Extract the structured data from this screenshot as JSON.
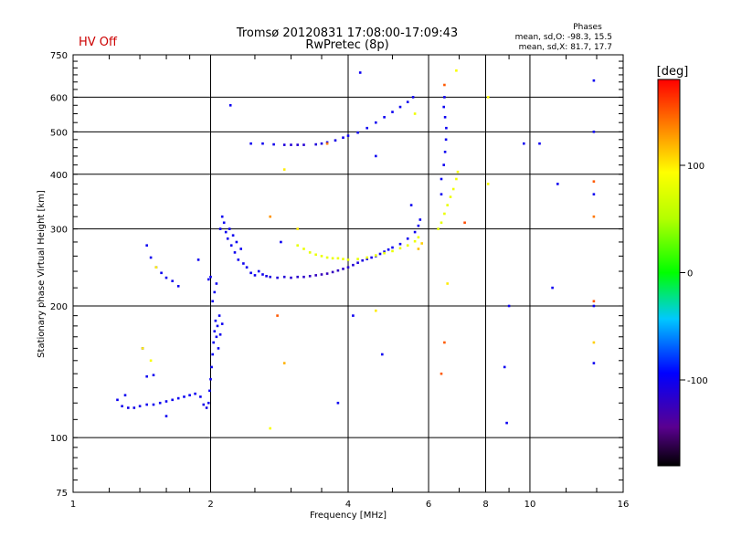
{
  "header": {
    "status": "HV Off",
    "status_color": "#cc0000",
    "title_line1": "Tromsø 20120831 17:08:00-17:09:43",
    "title_line2": "RwPretec (8p)",
    "phases_title": "Phases",
    "phases_o": "mean, sd,O: -98.3, 15.5",
    "phases_x": "mean, sd,X:  81.7, 17.7"
  },
  "colorbar": {
    "label": "[deg]",
    "range": [
      -180,
      180
    ],
    "ticks": [
      {
        "value": 100,
        "label": "100"
      },
      {
        "value": 0,
        "label": "0"
      },
      {
        "value": -100,
        "label": "-100"
      }
    ]
  },
  "chart_data": {
    "type": "scatter",
    "xlabel": "Frequency [MHz]",
    "ylabel": "Stationary phase Virtual Height [km]",
    "xscale": "log",
    "yscale": "log",
    "xlim": [
      1,
      16
    ],
    "ylim": [
      75,
      750
    ],
    "grid": true,
    "xticks_major": [
      {
        "value": 1,
        "label": "1"
      },
      {
        "value": 2,
        "label": "2"
      },
      {
        "value": 4,
        "label": "4"
      },
      {
        "value": 6,
        "label": "6"
      },
      {
        "value": 8,
        "label": "8"
      },
      {
        "value": 10,
        "label": "10"
      },
      {
        "value": 16,
        "label": "16"
      }
    ],
    "yticks_major": [
      {
        "value": 75,
        "label": "75"
      },
      {
        "value": 100,
        "label": "100"
      },
      {
        "value": 200,
        "label": "200"
      },
      {
        "value": 300,
        "label": "300"
      },
      {
        "value": 400,
        "label": "400"
      },
      {
        "value": 500,
        "label": "500"
      },
      {
        "value": 600,
        "label": "600"
      },
      {
        "value": 750,
        "label": "750"
      }
    ],
    "series": [
      {
        "mode": "O",
        "points": [
          [
            1.25,
            122,
            -100
          ],
          [
            1.28,
            118,
            -102
          ],
          [
            1.32,
            117,
            -104
          ],
          [
            1.36,
            117,
            -103
          ],
          [
            1.4,
            118,
            -102
          ],
          [
            1.45,
            119,
            -101
          ],
          [
            1.5,
            119,
            -100
          ],
          [
            1.55,
            120,
            -99
          ],
          [
            1.6,
            121,
            -100
          ],
          [
            1.65,
            122,
            -101
          ],
          [
            1.7,
            123,
            -100
          ],
          [
            1.75,
            124,
            -99
          ],
          [
            1.8,
            125,
            -98
          ],
          [
            1.85,
            126,
            -99
          ],
          [
            1.9,
            124,
            -100
          ],
          [
            1.93,
            119,
            -103
          ],
          [
            1.96,
            117,
            -104
          ],
          [
            1.98,
            120,
            -102
          ],
          [
            1.99,
            128,
            -100
          ],
          [
            2.0,
            136,
            -99
          ],
          [
            2.01,
            145,
            -98
          ],
          [
            2.02,
            155,
            -97
          ],
          [
            2.03,
            165,
            -98
          ],
          [
            2.04,
            175,
            -99
          ],
          [
            2.05,
            185,
            -100
          ],
          [
            2.06,
            170,
            -101
          ],
          [
            2.07,
            180,
            -100
          ],
          [
            2.08,
            160,
            -99
          ],
          [
            2.09,
            190,
            -100
          ],
          [
            2.1,
            172,
            -101
          ],
          [
            2.12,
            182,
            -100
          ],
          [
            2.02,
            205,
            -100
          ],
          [
            2.04,
            215,
            -99
          ],
          [
            2.06,
            225,
            -100
          ],
          [
            1.98,
            230,
            -101
          ],
          [
            2.1,
            300,
            -100
          ],
          [
            2.12,
            320,
            -100
          ],
          [
            2.14,
            310,
            -99
          ],
          [
            2.16,
            295,
            -100
          ],
          [
            2.18,
            285,
            -101
          ],
          [
            2.2,
            300,
            -100
          ],
          [
            2.22,
            275,
            -99
          ],
          [
            2.24,
            290,
            -100
          ],
          [
            2.26,
            265,
            -101
          ],
          [
            2.28,
            280,
            -100
          ],
          [
            2.3,
            255,
            -99
          ],
          [
            2.33,
            270,
            -100
          ],
          [
            2.36,
            250,
            -101
          ],
          [
            2.4,
            245,
            -100
          ],
          [
            2.45,
            238,
            -100
          ],
          [
            2.5,
            235,
            -101
          ],
          [
            2.55,
            240,
            -100
          ],
          [
            2.6,
            236,
            -102
          ],
          [
            2.65,
            234,
            -105
          ],
          [
            2.7,
            233,
            -108
          ],
          [
            2.8,
            232,
            -110
          ],
          [
            2.9,
            233,
            -112
          ],
          [
            3.0,
            232,
            -115
          ],
          [
            3.1,
            233,
            -116
          ],
          [
            3.2,
            233,
            -118
          ],
          [
            3.3,
            234,
            -120
          ],
          [
            3.4,
            235,
            -122
          ],
          [
            3.5,
            236,
            -123
          ],
          [
            3.6,
            237,
            -124
          ],
          [
            3.7,
            239,
            -122
          ],
          [
            3.8,
            241,
            -120
          ],
          [
            3.9,
            243,
            -118
          ],
          [
            4.0,
            245,
            -115
          ],
          [
            4.1,
            248,
            -112
          ],
          [
            4.2,
            251,
            -110
          ],
          [
            4.3,
            254,
            -107
          ],
          [
            4.4,
            256,
            -105
          ],
          [
            4.5,
            258,
            -104
          ],
          [
            4.6,
            260,
            -103
          ],
          [
            4.7,
            263,
            -102
          ],
          [
            4.8,
            266,
            -101
          ],
          [
            4.9,
            269,
            -100
          ],
          [
            5.0,
            272,
            -100
          ],
          [
            5.2,
            277,
            -100
          ],
          [
            5.4,
            285,
            -100
          ],
          [
            5.6,
            295,
            -100
          ],
          [
            5.7,
            305,
            -100
          ],
          [
            5.75,
            315,
            -100
          ],
          [
            1.45,
            275,
            -100
          ],
          [
            1.48,
            258,
            -101
          ],
          [
            1.52,
            245,
            -100
          ],
          [
            1.56,
            238,
            -100
          ],
          [
            1.6,
            232,
            -101
          ],
          [
            1.65,
            228,
            -100
          ],
          [
            1.7,
            222,
            -100
          ],
          [
            2.45,
            470,
            -100
          ],
          [
            2.6,
            470,
            -101
          ],
          [
            2.75,
            468,
            -102
          ],
          [
            2.9,
            467,
            -110
          ],
          [
            3.0,
            467,
            -112
          ],
          [
            3.1,
            467,
            -114
          ],
          [
            3.2,
            467,
            -113
          ],
          [
            3.4,
            468,
            -110
          ],
          [
            3.5,
            470,
            -108
          ],
          [
            3.6,
            473,
            -106
          ],
          [
            3.75,
            478,
            -104
          ],
          [
            3.9,
            485,
            -102
          ],
          [
            4.0,
            490,
            -101
          ],
          [
            4.2,
            498,
            -100
          ],
          [
            4.4,
            510,
            -100
          ],
          [
            4.6,
            525,
            -100
          ],
          [
            4.8,
            540,
            -100
          ],
          [
            5.0,
            555,
            -100
          ],
          [
            5.2,
            570,
            -100
          ],
          [
            5.4,
            585,
            -100
          ],
          [
            5.55,
            600,
            -100
          ],
          [
            6.5,
            600,
            -100
          ],
          [
            6.48,
            570,
            -100
          ],
          [
            6.52,
            540,
            -100
          ],
          [
            6.56,
            510,
            -100
          ],
          [
            6.55,
            480,
            -100
          ],
          [
            6.52,
            450,
            -100
          ],
          [
            6.48,
            420,
            -100
          ],
          [
            6.4,
            390,
            -100
          ],
          [
            1.3,
            125,
            -100
          ],
          [
            1.45,
            138,
            -100
          ],
          [
            1.5,
            139,
            -100
          ],
          [
            1.42,
            160,
            -100
          ],
          [
            1.6,
            112,
            -100
          ],
          [
            2.21,
            575,
            -100
          ],
          [
            2.0,
            233,
            -100
          ],
          [
            1.88,
            255,
            -100
          ],
          [
            4.25,
            683,
            -100
          ],
          [
            5.5,
            340,
            -100
          ],
          [
            6.4,
            360,
            -100
          ],
          [
            13.8,
            655,
            -100
          ],
          [
            13.8,
            500,
            -100
          ],
          [
            13.8,
            360,
            -100
          ],
          [
            13.8,
            200,
            -100
          ],
          [
            13.8,
            148,
            -100
          ],
          [
            11.5,
            380,
            -100
          ],
          [
            11.2,
            220,
            -100
          ],
          [
            9.0,
            200,
            -100
          ],
          [
            8.8,
            145,
            -100
          ],
          [
            8.9,
            108,
            -100
          ],
          [
            10.5,
            470,
            -100
          ],
          [
            9.7,
            470,
            -100
          ],
          [
            3.8,
            120,
            -100
          ],
          [
            4.75,
            155,
            -100
          ],
          [
            2.85,
            280,
            -100
          ],
          [
            4.1,
            190,
            -100
          ],
          [
            4.6,
            440,
            -100
          ]
        ]
      },
      {
        "mode": "X",
        "points": [
          [
            3.1,
            275,
            80
          ],
          [
            3.2,
            270,
            82
          ],
          [
            3.3,
            265,
            80
          ],
          [
            3.4,
            262,
            82
          ],
          [
            3.5,
            260,
            83
          ],
          [
            3.6,
            258,
            81
          ],
          [
            3.7,
            257,
            82
          ],
          [
            3.8,
            257,
            84
          ],
          [
            3.9,
            256,
            82
          ],
          [
            4.0,
            255,
            81
          ],
          [
            4.2,
            256,
            80
          ],
          [
            4.4,
            258,
            82
          ],
          [
            4.6,
            261,
            83
          ],
          [
            4.8,
            264,
            82
          ],
          [
            5.0,
            267,
            81
          ],
          [
            5.2,
            271,
            80
          ],
          [
            5.4,
            275,
            82
          ],
          [
            5.6,
            281,
            83
          ],
          [
            5.7,
            287,
            85
          ],
          [
            6.3,
            300,
            78
          ],
          [
            6.4,
            310,
            80
          ],
          [
            6.5,
            325,
            82
          ],
          [
            6.6,
            340,
            81
          ],
          [
            6.7,
            355,
            83
          ],
          [
            6.8,
            370,
            85
          ],
          [
            6.9,
            390,
            88
          ],
          [
            6.95,
            405,
            90
          ],
          [
            5.8,
            278,
            110
          ],
          [
            5.7,
            270,
            115
          ],
          [
            5.6,
            550,
            85
          ],
          [
            2.9,
            410,
            100
          ],
          [
            3.1,
            300,
            100
          ],
          [
            6.5,
            640,
            150
          ],
          [
            6.6,
            225,
            100
          ],
          [
            6.5,
            165,
            150
          ],
          [
            6.4,
            140,
            150
          ],
          [
            7.2,
            310,
            155
          ],
          [
            8.1,
            380,
            90
          ],
          [
            1.42,
            160,
            100
          ],
          [
            1.48,
            150,
            90
          ],
          [
            1.52,
            245,
            100
          ],
          [
            2.8,
            190,
            150
          ],
          [
            2.7,
            320,
            130
          ],
          [
            2.9,
            148,
            120
          ],
          [
            4.6,
            195,
            100
          ],
          [
            6.9,
            690,
            90
          ],
          [
            8.1,
            600,
            95
          ],
          [
            13.8,
            385,
            150
          ],
          [
            13.8,
            320,
            140
          ],
          [
            13.8,
            205,
            150
          ],
          [
            13.8,
            165,
            110
          ],
          [
            2.7,
            105,
            90
          ],
          [
            3.6,
            470,
            140
          ]
        ]
      }
    ]
  }
}
